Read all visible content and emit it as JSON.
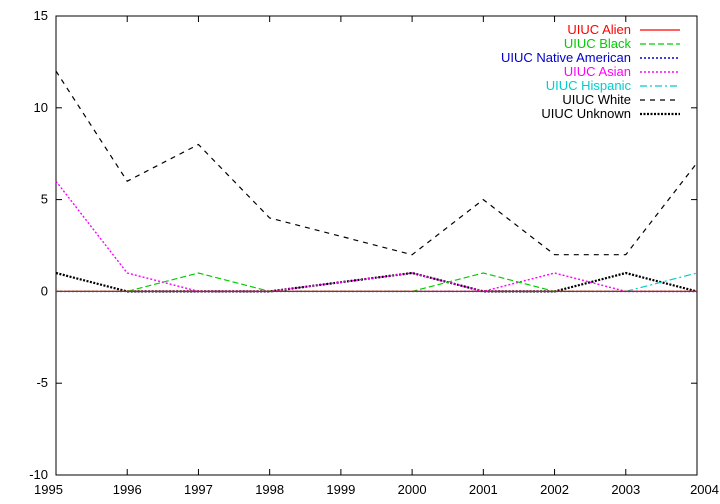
{
  "chart_data": {
    "type": "line",
    "title": "",
    "xlabel": "",
    "ylabel": "",
    "x": [
      1995,
      1996,
      1997,
      1998,
      1999,
      2000,
      2001,
      2002,
      2003,
      2004
    ],
    "xlim": [
      1995,
      2004
    ],
    "ylim": [
      -10,
      15
    ],
    "xticks": [
      "1995",
      "1996",
      "1997",
      "1998",
      "1999",
      "2000",
      "2001",
      "2002",
      "2003",
      "2004"
    ],
    "yticks": [
      "-10",
      "-5",
      "0",
      "5",
      "10",
      "15"
    ],
    "grid": false,
    "legend_position": "top-right",
    "series": [
      {
        "name": "UIUC Alien",
        "color": "#ff0000",
        "dash": "solid",
        "values": [
          0,
          0,
          0,
          0,
          0,
          0,
          0,
          0,
          0,
          0
        ]
      },
      {
        "name": "UIUC Black",
        "color": "#00cc00",
        "dash": "dashed",
        "values": [
          0,
          0,
          1,
          0,
          0,
          0,
          1,
          0,
          0,
          0
        ]
      },
      {
        "name": "UIUC Native American",
        "color": "#0000cc",
        "dash": "dotted",
        "values": [
          0,
          0,
          0,
          0,
          0,
          0,
          0,
          0,
          0,
          0
        ]
      },
      {
        "name": "UIUC Asian",
        "color": "#ff00ff",
        "dash": "dotted",
        "values": [
          6,
          1,
          0,
          0,
          0.5,
          1,
          0,
          1,
          0,
          0
        ]
      },
      {
        "name": "UIUC Hispanic",
        "color": "#00cccc",
        "dash": "dash-dot",
        "values": [
          0,
          0,
          0,
          0,
          0,
          0,
          0,
          0,
          0,
          1
        ]
      },
      {
        "name": "UIUC White",
        "color": "#000000",
        "dash": "sparse-dashed",
        "values": [
          12,
          6,
          8,
          4,
          3,
          2,
          5,
          2,
          2,
          7
        ]
      },
      {
        "name": "UIUC Unknown",
        "color": "#000000",
        "dash": "dense-dotted",
        "values": [
          1,
          0,
          0,
          0,
          0.5,
          1,
          0,
          0,
          1,
          0
        ]
      }
    ]
  }
}
